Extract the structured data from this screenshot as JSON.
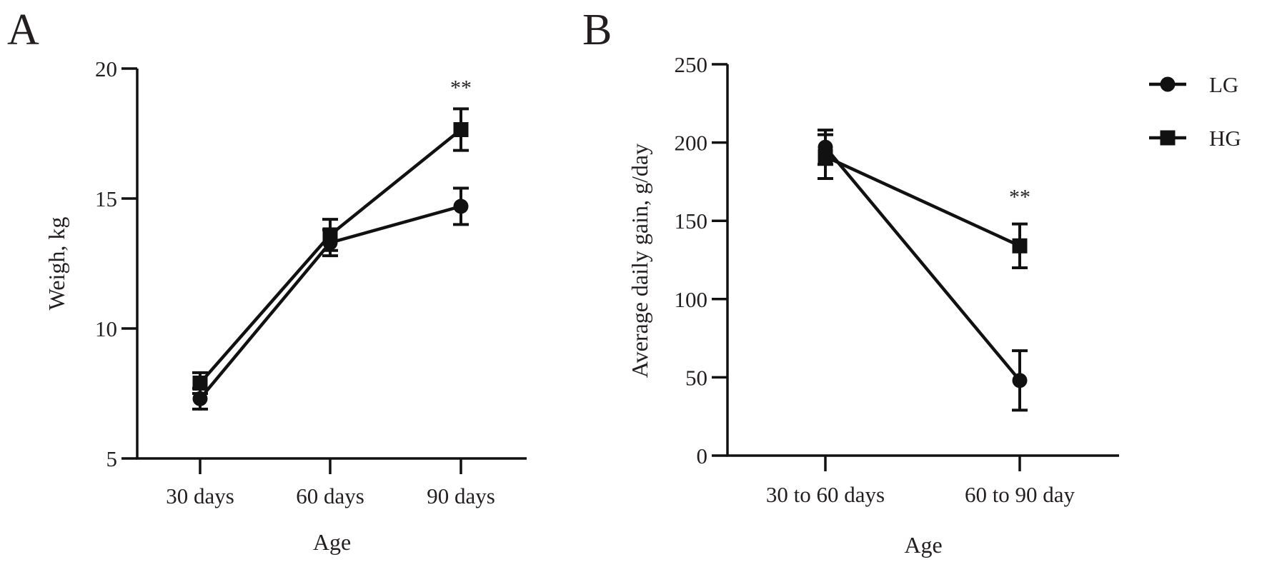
{
  "legend": [
    {
      "series": "LG",
      "label": "LG",
      "marker": "circle"
    },
    {
      "series": "HG",
      "label": "HG",
      "marker": "square"
    }
  ],
  "colors": {
    "ink": "#111111",
    "text": "#231f20"
  },
  "chart_data": [
    {
      "panel": "A",
      "type": "line",
      "title": "",
      "xlabel": "Age",
      "ylabel": "Weigh, kg",
      "categories": [
        "30 days",
        "60 days",
        "90 days"
      ],
      "ylim": [
        5,
        20
      ],
      "yticks": [
        5,
        10,
        15,
        20
      ],
      "series": [
        {
          "name": "LG",
          "marker": "circle",
          "values": [
            7.3,
            13.3,
            14.7
          ],
          "errors": [
            0.4,
            0.5,
            0.7
          ]
        },
        {
          "name": "HG",
          "marker": "square",
          "values": [
            7.9,
            13.6,
            17.65
          ],
          "errors": [
            0.4,
            0.6,
            0.8
          ]
        }
      ],
      "annotations": [
        {
          "category": "90 days",
          "text": "**"
        }
      ]
    },
    {
      "panel": "B",
      "type": "line",
      "title": "",
      "xlabel": "Age",
      "ylabel": "Average daily gain, g/day",
      "categories": [
        "30  to 60 days",
        "60  to 90 day"
      ],
      "ylim": [
        0,
        250
      ],
      "yticks": [
        0,
        50,
        100,
        150,
        200,
        250
      ],
      "series": [
        {
          "name": "LG",
          "marker": "circle",
          "values": [
            197,
            48
          ],
          "errors": [
            11,
            19
          ]
        },
        {
          "name": "HG",
          "marker": "square",
          "values": [
            191,
            134
          ],
          "errors": [
            14,
            14
          ]
        }
      ],
      "annotations": [
        {
          "category": "60  to 90 day",
          "text": "**"
        }
      ]
    }
  ]
}
